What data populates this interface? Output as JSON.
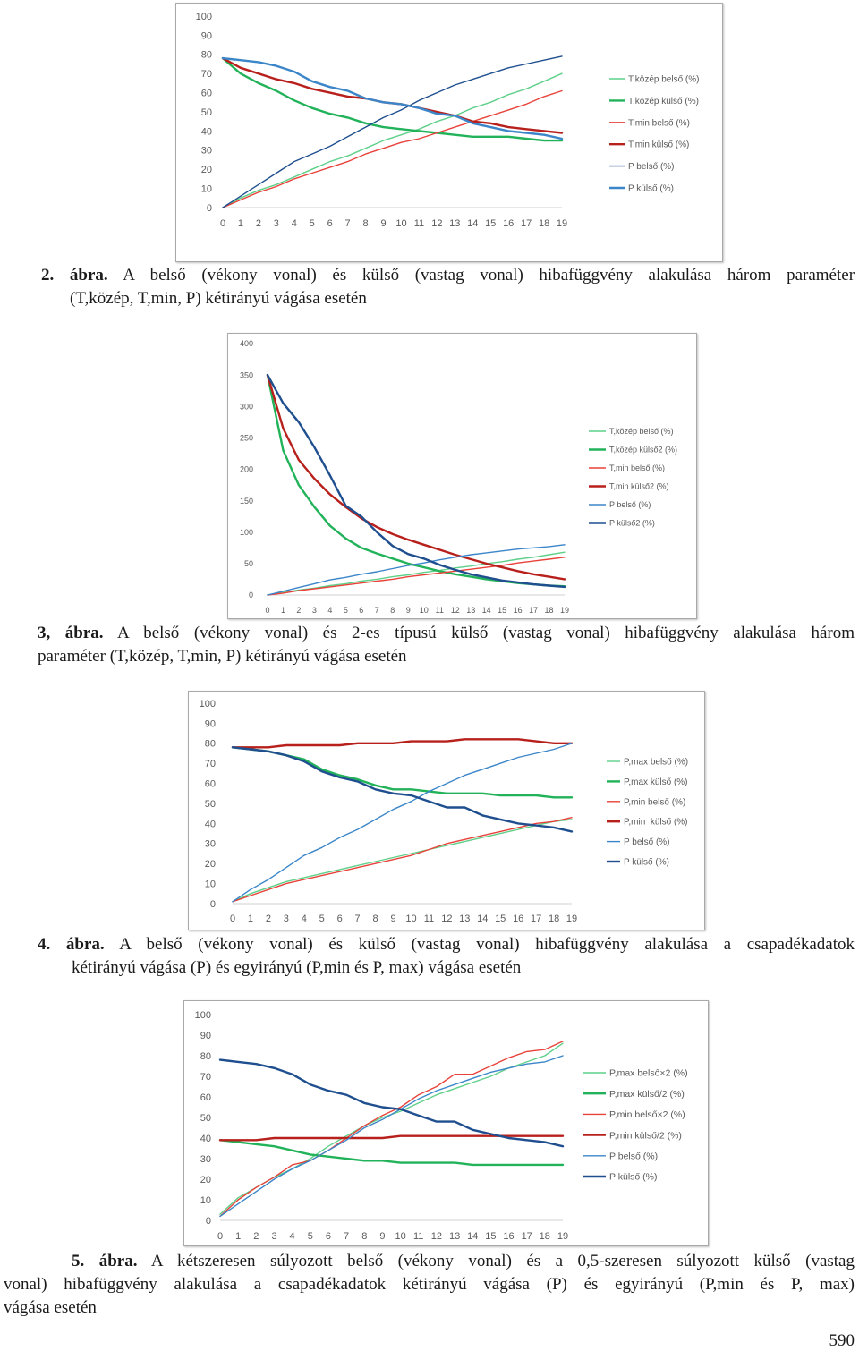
{
  "captions": [
    {
      "label": "2. ábra.",
      "text": [
        "A belső (vékony vonal) és külső (vastag vonal) hibafüggvény alakulása három paraméter",
        "(T,közép, T,min, P) kétirányú vágása esetén"
      ]
    },
    {
      "label": "3, ábra.",
      "text": [
        "A belső (vékony vonal) és 2-es típusú külső (vastag vonal) hibafüggvény alakulása három",
        "paraméter (T,közép, T,min, P) kétirányú vágása esetén"
      ]
    },
    {
      "label": "4. ábra.",
      "text": [
        "A belső (vékony vonal) és külső (vastag vonal) hibafüggvény alakulása a csapadékadatok",
        "kétirányú vágása (P) és egyirányú (P,min és P, max) vágása esetén"
      ]
    },
    {
      "label": "5. ábra.",
      "text": [
        "A kétszeresen súlyozott belső (vékony vonal) és a 0,5-szeresen súlyozott külső (vastag",
        "vonal) hibafüggvény alakulása a csapadékadatok kétirányú vágása (P) és egyirányú (P,min és P, max)",
        "vágása esetén"
      ]
    }
  ],
  "page_number": "590",
  "chart_data": [
    {
      "type": "line",
      "title": "",
      "xlabel": "",
      "ylabel": "",
      "grid": false,
      "legend": "right",
      "x": [
        0,
        1,
        2,
        3,
        4,
        5,
        6,
        7,
        8,
        9,
        10,
        11,
        12,
        13,
        14,
        15,
        16,
        17,
        18,
        19
      ],
      "ylim": [
        0,
        100
      ],
      "yticks": [
        0,
        10,
        20,
        30,
        40,
        50,
        60,
        70,
        80,
        90,
        100
      ],
      "series": [
        {
          "name": "T,közép belső (%)",
          "color": "#5fd08a",
          "line": "thin",
          "values": [
            0,
            5,
            9,
            12,
            16,
            20,
            24,
            27,
            31,
            35,
            38,
            41,
            45,
            48,
            52,
            55,
            59,
            62,
            66,
            70
          ]
        },
        {
          "name": "T,közép külső (%)",
          "color": "#22b35a",
          "line": "thick",
          "values": [
            78,
            70,
            65,
            61,
            56,
            52,
            49,
            47,
            44,
            42,
            41,
            40,
            39,
            38,
            37,
            37,
            37,
            36,
            35,
            35
          ]
        },
        {
          "name": "T,min belső (%)",
          "color": "#e8423a",
          "line": "thin",
          "values": [
            0,
            4,
            8,
            11,
            15,
            18,
            21,
            24,
            28,
            31,
            34,
            36,
            39,
            42,
            45,
            48,
            51,
            54,
            58,
            61
          ]
        },
        {
          "name": "T,min külső (%)",
          "color": "#b8201c",
          "line": "thick",
          "values": [
            78,
            73,
            70,
            67,
            65,
            62,
            60,
            58,
            57,
            55,
            54,
            52,
            50,
            48,
            45,
            44,
            42,
            41,
            40,
            39
          ]
        },
        {
          "name": "P belső (%)",
          "color": "#1f4f8f",
          "line": "thin",
          "values": [
            0,
            6,
            12,
            18,
            24,
            28,
            32,
            37,
            42,
            47,
            51,
            56,
            60,
            64,
            67,
            70,
            73,
            75,
            77,
            79
          ]
        },
        {
          "name": "P külső (%)",
          "color": "#3b86c9",
          "line": "thick",
          "values": [
            78,
            77,
            76,
            74,
            71,
            66,
            63,
            61,
            57,
            55,
            54,
            52,
            49,
            48,
            44,
            42,
            40,
            39,
            38,
            36
          ]
        }
      ]
    },
    {
      "type": "line",
      "title": "",
      "xlabel": "",
      "ylabel": "",
      "grid": false,
      "legend": "right",
      "x": [
        0,
        1,
        2,
        3,
        4,
        5,
        6,
        7,
        8,
        9,
        10,
        11,
        12,
        13,
        14,
        15,
        16,
        17,
        18,
        19
      ],
      "ylim": [
        0,
        400
      ],
      "yticks": [
        0,
        50,
        100,
        150,
        200,
        250,
        300,
        350,
        400
      ],
      "series": [
        {
          "name": "T,közép belső (%)",
          "color": "#5fd08a",
          "line": "thin",
          "values": [
            0,
            4,
            8,
            11,
            15,
            18,
            22,
            25,
            29,
            32,
            36,
            39,
            43,
            46,
            50,
            53,
            57,
            60,
            64,
            68
          ]
        },
        {
          "name": "T,közép külső2 (%)",
          "color": "#22b35a",
          "line": "thick",
          "values": [
            350,
            230,
            175,
            140,
            110,
            90,
            75,
            66,
            58,
            50,
            44,
            38,
            33,
            29,
            25,
            22,
            19,
            17,
            15,
            14
          ]
        },
        {
          "name": "T,min belső (%)",
          "color": "#e8423a",
          "line": "thin",
          "values": [
            0,
            3,
            7,
            10,
            13,
            16,
            19,
            22,
            25,
            29,
            32,
            35,
            38,
            41,
            44,
            47,
            51,
            54,
            57,
            60
          ]
        },
        {
          "name": "T,min külső2 (%)",
          "color": "#b8201c",
          "line": "thick",
          "values": [
            350,
            265,
            215,
            185,
            160,
            140,
            122,
            108,
            97,
            88,
            80,
            72,
            64,
            57,
            50,
            44,
            38,
            33,
            29,
            25
          ]
        },
        {
          "name": "P belső (%)",
          "color": "#3b86c9",
          "line": "thin",
          "values": [
            0,
            6,
            12,
            18,
            24,
            28,
            33,
            37,
            42,
            47,
            51,
            56,
            60,
            64,
            67,
            70,
            73,
            75,
            77,
            80
          ]
        },
        {
          "name": "P külső2 (%)",
          "color": "#1f4f8f",
          "line": "thick",
          "values": [
            350,
            305,
            275,
            235,
            190,
            142,
            125,
            100,
            78,
            65,
            58,
            48,
            40,
            33,
            28,
            23,
            20,
            17,
            15,
            13
          ]
        }
      ]
    },
    {
      "type": "line",
      "title": "",
      "xlabel": "",
      "ylabel": "",
      "grid": false,
      "legend": "right",
      "x": [
        0,
        1,
        2,
        3,
        4,
        5,
        6,
        7,
        8,
        9,
        10,
        11,
        12,
        13,
        14,
        15,
        16,
        17,
        18,
        19
      ],
      "ylim": [
        0,
        100
      ],
      "yticks": [
        0,
        10,
        20,
        30,
        40,
        50,
        60,
        70,
        80,
        90,
        100
      ],
      "series": [
        {
          "name": "P,max belső (%)",
          "color": "#5fd08a",
          "line": "thin",
          "values": [
            1,
            5,
            8,
            11,
            13,
            15,
            17,
            19,
            21,
            23,
            25,
            27,
            29,
            31,
            33,
            35,
            37,
            39,
            41,
            42
          ]
        },
        {
          "name": "P,max külső (%)",
          "color": "#22b35a",
          "line": "thick",
          "values": [
            78,
            77,
            76,
            74,
            72,
            67,
            64,
            62,
            59,
            57,
            57,
            56,
            55,
            55,
            55,
            54,
            54,
            54,
            53,
            53
          ]
        },
        {
          "name": "P,min belső (%)",
          "color": "#e8423a",
          "line": "thin",
          "values": [
            1,
            4,
            7,
            10,
            12,
            14,
            16,
            18,
            20,
            22,
            24,
            27,
            30,
            32,
            34,
            36,
            38,
            40,
            41,
            43
          ]
        },
        {
          "name": "P,min  külső (%)",
          "color": "#b8201c",
          "line": "thick",
          "values": [
            78,
            78,
            78,
            79,
            79,
            79,
            79,
            80,
            80,
            80,
            81,
            81,
            81,
            82,
            82,
            82,
            82,
            81,
            80,
            80
          ]
        },
        {
          "name": "P belső (%)",
          "color": "#3b86c9",
          "line": "thin",
          "values": [
            1,
            7,
            12,
            18,
            24,
            28,
            33,
            37,
            42,
            47,
            51,
            56,
            60,
            64,
            67,
            70,
            73,
            75,
            77,
            80
          ]
        },
        {
          "name": "P külső (%)",
          "color": "#1f4f8f",
          "line": "thick",
          "values": [
            78,
            77,
            76,
            74,
            71,
            66,
            63,
            61,
            57,
            55,
            54,
            51,
            48,
            48,
            44,
            42,
            40,
            39,
            38,
            36
          ]
        }
      ]
    },
    {
      "type": "line",
      "title": "",
      "xlabel": "",
      "ylabel": "",
      "grid": false,
      "legend": "right",
      "x": [
        0,
        1,
        2,
        3,
        4,
        5,
        6,
        7,
        8,
        9,
        10,
        11,
        12,
        13,
        14,
        15,
        16,
        17,
        18,
        19
      ],
      "ylim": [
        0,
        100
      ],
      "yticks": [
        0,
        10,
        20,
        30,
        40,
        50,
        60,
        70,
        80,
        90,
        100
      ],
      "series": [
        {
          "name": "P,max belső×2 (%)",
          "color": "#5fd08a",
          "line": "thin",
          "values": [
            3,
            11,
            16,
            21,
            25,
            30,
            36,
            41,
            46,
            50,
            53,
            57,
            61,
            64,
            67,
            70,
            74,
            77,
            80,
            86
          ]
        },
        {
          "name": "P,max külső/2 (%)",
          "color": "#22b35a",
          "line": "thick",
          "values": [
            39,
            38,
            37,
            36,
            34,
            32,
            31,
            30,
            29,
            29,
            28,
            28,
            28,
            28,
            27,
            27,
            27,
            27,
            27,
            27
          ]
        },
        {
          "name": "P,min belső×2 (%)",
          "color": "#e8423a",
          "line": "thin",
          "values": [
            2,
            10,
            16,
            21,
            27,
            29,
            34,
            40,
            46,
            51,
            55,
            61,
            65,
            71,
            71,
            75,
            79,
            82,
            83,
            87
          ]
        },
        {
          "name": "P,min külső/2 (%)",
          "color": "#b8201c",
          "line": "thick",
          "values": [
            39,
            39,
            39,
            40,
            40,
            40,
            40,
            40,
            40,
            40,
            41,
            41,
            41,
            41,
            41,
            41,
            41,
            41,
            41,
            41
          ]
        },
        {
          "name": "P belső (%)",
          "color": "#3b86c9",
          "line": "thin",
          "values": [
            2,
            8,
            14,
            20,
            25,
            29,
            34,
            39,
            45,
            49,
            54,
            59,
            63,
            66,
            69,
            72,
            74,
            76,
            77,
            80
          ]
        },
        {
          "name": "P külső (%)",
          "color": "#1f4f8f",
          "line": "thick",
          "values": [
            78,
            77,
            76,
            74,
            71,
            66,
            63,
            61,
            57,
            55,
            54,
            51,
            48,
            48,
            44,
            42,
            40,
            39,
            38,
            36
          ]
        }
      ]
    }
  ]
}
